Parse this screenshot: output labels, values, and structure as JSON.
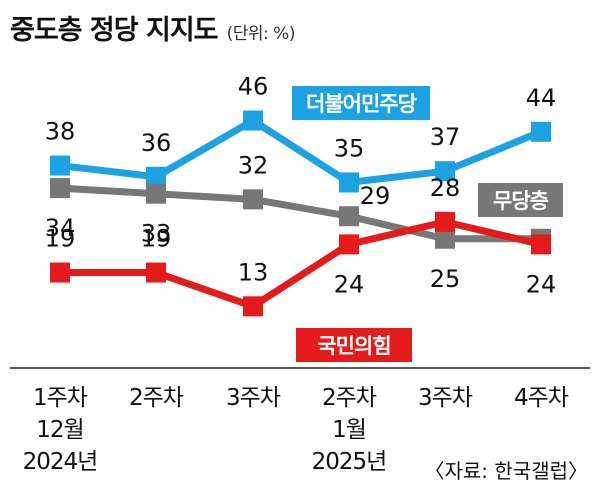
{
  "header": {
    "title": "중도층 정당 지지도",
    "unit": "(단위: %)"
  },
  "source": "〈자료: 한국갤럽〉",
  "chart_data": {
    "type": "line",
    "title": "중도층 정당 지지도",
    "unit": "(단위: %)",
    "x": [
      {
        "week": "1주차",
        "month": "12월",
        "year": "2024년"
      },
      {
        "week": "2주차",
        "month": "",
        "year": ""
      },
      {
        "week": "3주차",
        "month": "",
        "year": ""
      },
      {
        "week": "2주차",
        "month": "1월",
        "year": "2025년"
      },
      {
        "week": "3주차",
        "month": "",
        "year": ""
      },
      {
        "week": "4주차",
        "month": "",
        "year": ""
      }
    ],
    "series": [
      {
        "name": "더불어민주당",
        "color": "#1ca1e2",
        "values": [
          38,
          36,
          46,
          35,
          37,
          44
        ]
      },
      {
        "name": "무당층",
        "color": "#777777",
        "values": [
          34,
          33,
          32,
          29,
          25,
          25
        ]
      },
      {
        "name": "국민의힘",
        "color": "#e51a1a",
        "values": [
          19,
          19,
          13,
          24,
          28,
          24
        ]
      }
    ],
    "grid": false
  }
}
